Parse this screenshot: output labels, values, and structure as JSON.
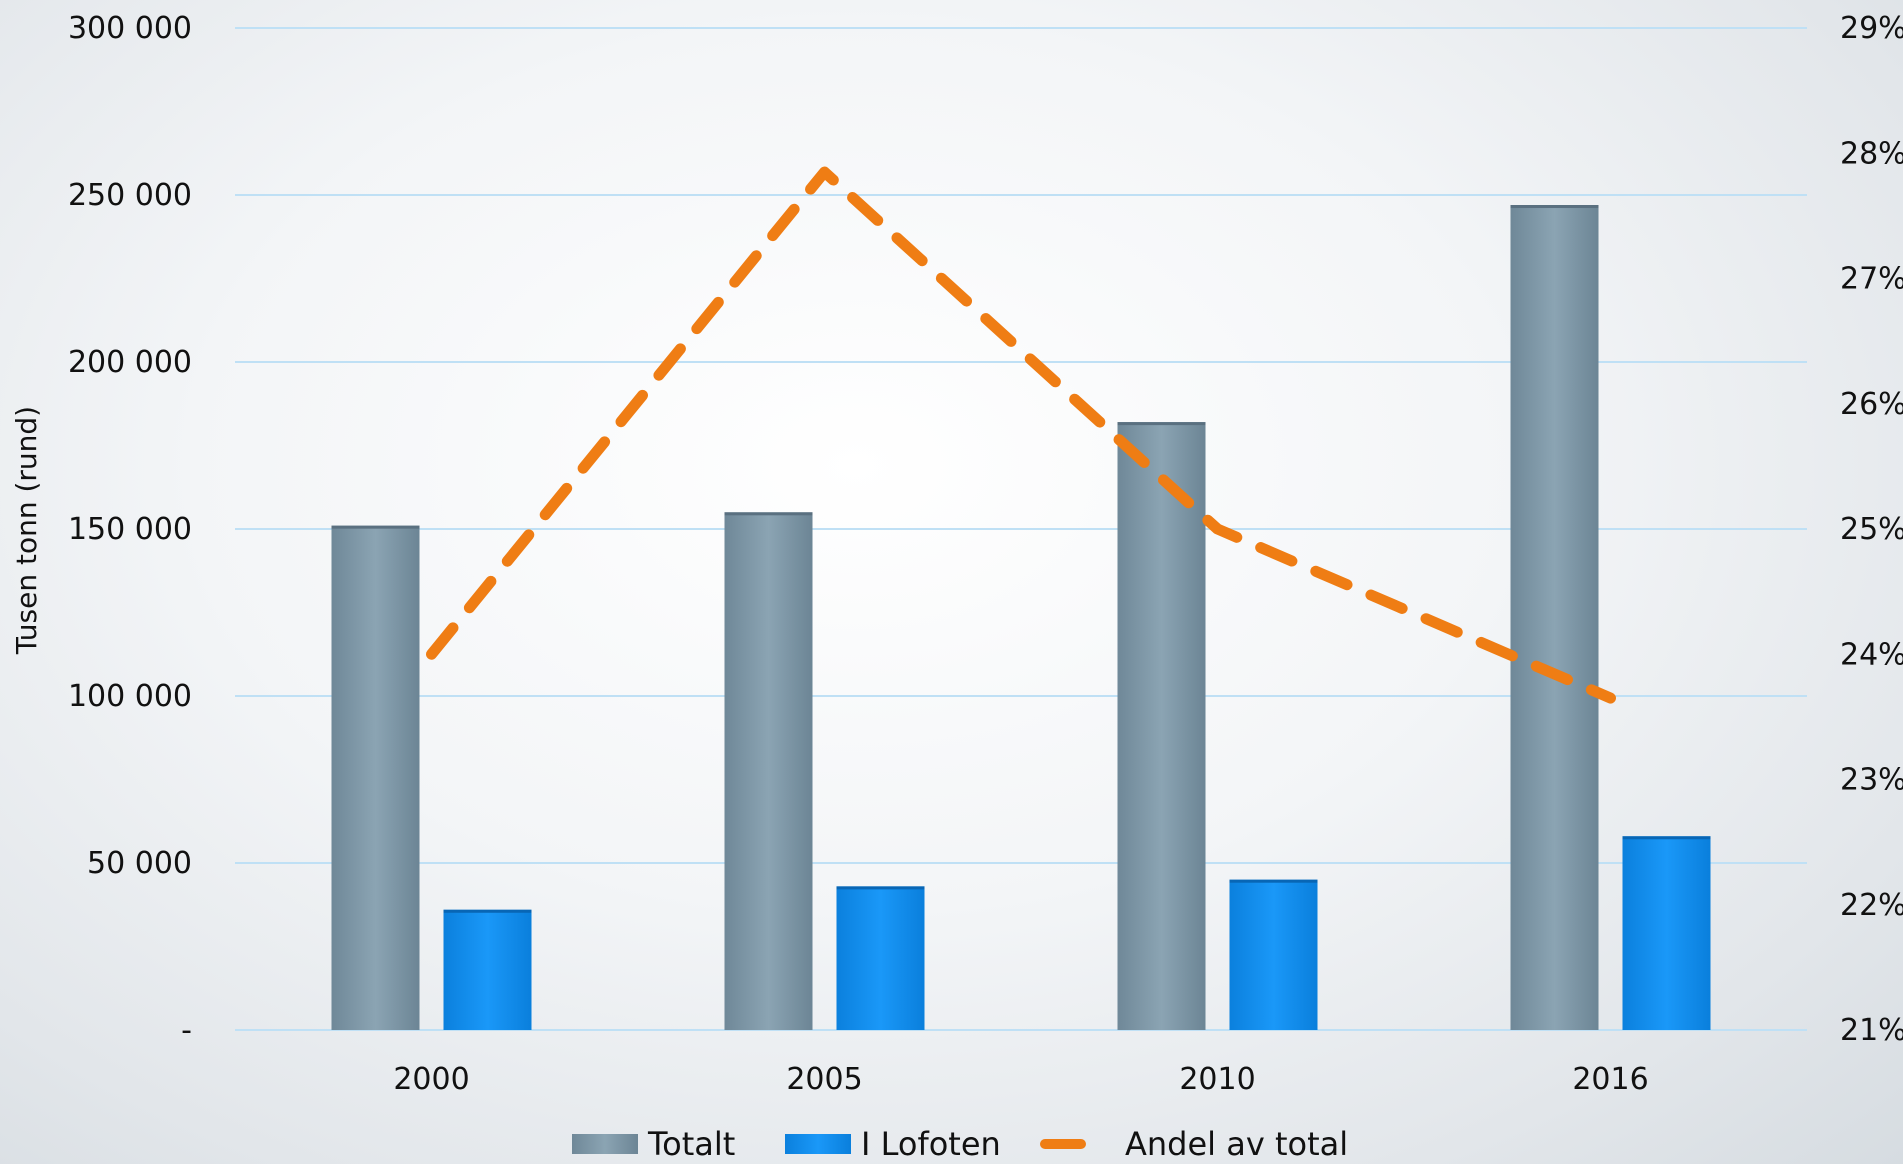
{
  "chart_data": {
    "type": "bar",
    "categories": [
      "2000",
      "2005",
      "2010",
      "2016"
    ],
    "ylabel": "Tusen tonn (rund)",
    "ylim": [
      0,
      300000
    ],
    "y_ticks": [
      "-",
      "50 000",
      "100 000",
      "150 000",
      "200 000",
      "250 000",
      "300 000"
    ],
    "y2lim": [
      21,
      29
    ],
    "y2_ticks": [
      "21%",
      "22%",
      "23%",
      "24%",
      "25%",
      "26%",
      "27%",
      "28%",
      "29%"
    ],
    "series": [
      {
        "name": "Totalt",
        "type": "bar",
        "axis": "left",
        "color": "#7f9aaa",
        "values": [
          151000,
          155000,
          182000,
          247000
        ]
      },
      {
        "name": "I Lofoten",
        "type": "bar",
        "axis": "left",
        "color": "#1390f2",
        "values": [
          36000,
          43000,
          45000,
          58000
        ]
      },
      {
        "name": "Andel av total",
        "type": "line",
        "style": "dashed",
        "axis": "right",
        "color": "#ef7d14",
        "values": [
          24.0,
          27.85,
          25.0,
          23.65
        ]
      }
    ],
    "grid": true,
    "legend_position": "bottom"
  }
}
